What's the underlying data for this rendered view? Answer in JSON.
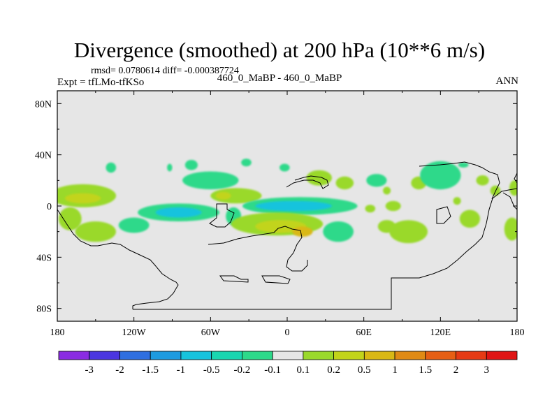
{
  "title": "Divergence (smoothed) at 200 hPa (10**6 m/s)",
  "stats_text": "rmsd= 0.0780614  diff= -0.000387724",
  "expt_text": "Expt = tfLMo-tfKSo",
  "runs_text": "460_0_MaBP - 460_0_MaBP",
  "season": "ANN",
  "chart_data": {
    "type": "heatmap",
    "title": "Divergence (smoothed) at 200 hPa (10**6 m/s)",
    "x_range": [
      -180,
      180
    ],
    "y_range": [
      -90,
      90
    ],
    "x_ticks": [
      {
        "v": -180,
        "label": "180"
      },
      {
        "v": -120,
        "label": "120W"
      },
      {
        "v": -60,
        "label": "60W"
      },
      {
        "v": 0,
        "label": "0"
      },
      {
        "v": 60,
        "label": "60E"
      },
      {
        "v": 120,
        "label": "120E"
      },
      {
        "v": 180,
        "label": "180"
      }
    ],
    "y_ticks": [
      {
        "v": 80,
        "label": "80N"
      },
      {
        "v": 40,
        "label": "40N"
      },
      {
        "v": 0,
        "label": "0"
      },
      {
        "v": -40,
        "label": "40S"
      },
      {
        "v": -80,
        "label": "80S"
      }
    ],
    "levels": [
      "-3",
      "-2",
      "-1.5",
      "-1",
      "-0.5",
      "-0.2",
      "-0.1",
      "0.1",
      "0.2",
      "0.5",
      "1",
      "1.5",
      "2",
      "3"
    ],
    "colorbar_colors": [
      "#8a2be2",
      "#4b36e0",
      "#2f6fe0",
      "#1e9be0",
      "#17c3dd",
      "#19d6b0",
      "#2dd98a",
      "#e6e6e6",
      "#9ad92b",
      "#c2d41a",
      "#d9b814",
      "#e08a14",
      "#e65f14",
      "#e63a14",
      "#e01414"
    ],
    "background_color": "#e6e6e6",
    "blobs": [
      {
        "lon": -138,
        "lat": 30,
        "rlon": 4,
        "rlat": 4,
        "color": "#2dd98a"
      },
      {
        "lon": -75,
        "lat": 32,
        "rlon": 5,
        "rlat": 4,
        "color": "#2dd98a"
      },
      {
        "lon": -32,
        "lat": 34,
        "rlon": 4,
        "rlat": 3,
        "color": "#2dd98a"
      },
      {
        "lon": -60,
        "lat": 20,
        "rlon": 22,
        "rlat": 7,
        "color": "#2dd98a"
      },
      {
        "lon": -92,
        "lat": 30,
        "rlon": 2,
        "rlat": 3,
        "color": "#2dd98a"
      },
      {
        "lon": -2,
        "lat": 30,
        "rlon": 4,
        "rlat": 3,
        "color": "#2dd98a"
      },
      {
        "lon": -160,
        "lat": 8,
        "rlon": 26,
        "rlat": 9,
        "color": "#9ad92b"
      },
      {
        "lon": -160,
        "lat": 6,
        "rlon": 14,
        "rlat": 4,
        "color": "#c2d41a"
      },
      {
        "lon": -170,
        "lat": -10,
        "rlon": 9,
        "rlat": 9,
        "color": "#9ad92b"
      },
      {
        "lon": -150,
        "lat": -20,
        "rlon": 16,
        "rlat": 8,
        "color": "#9ad92b"
      },
      {
        "lon": -85,
        "lat": -5,
        "rlon": 32,
        "rlat": 7,
        "color": "#2dd98a"
      },
      {
        "lon": -85,
        "lat": -5,
        "rlon": 18,
        "rlat": 4,
        "color": "#17c3dd"
      },
      {
        "lon": -40,
        "lat": 8,
        "rlon": 20,
        "rlat": 6,
        "color": "#9ad92b"
      },
      {
        "lon": -50,
        "lat": 8,
        "rlon": 6,
        "rlat": 3,
        "color": "#c2d41a"
      },
      {
        "lon": -120,
        "lat": -15,
        "rlon": 12,
        "rlat": 6,
        "color": "#2dd98a"
      },
      {
        "lon": -42,
        "lat": -8,
        "rlon": 6,
        "rlat": 7,
        "color": "#2dd98a"
      },
      {
        "lon": 10,
        "lat": 0,
        "rlon": 45,
        "rlat": 7,
        "color": "#2dd98a"
      },
      {
        "lon": 5,
        "lat": 0,
        "rlon": 30,
        "rlat": 4,
        "color": "#17c3dd"
      },
      {
        "lon": 70,
        "lat": 20,
        "rlon": 8,
        "rlat": 5,
        "color": "#2dd98a"
      },
      {
        "lon": 25,
        "lat": 22,
        "rlon": 10,
        "rlat": 6,
        "color": "#9ad92b"
      },
      {
        "lon": 45,
        "lat": 18,
        "rlon": 7,
        "rlat": 5,
        "color": "#9ad92b"
      },
      {
        "lon": -8,
        "lat": -14,
        "rlon": 36,
        "rlat": 9,
        "color": "#9ad92b"
      },
      {
        "lon": -5,
        "lat": -16,
        "rlon": 20,
        "rlat": 5,
        "color": "#c2d41a"
      },
      {
        "lon": 12,
        "lat": -20,
        "rlon": 8,
        "rlat": 4,
        "color": "#d9b814"
      },
      {
        "lon": 40,
        "lat": -20,
        "rlon": 12,
        "rlat": 8,
        "color": "#2dd98a"
      },
      {
        "lon": 65,
        "lat": -2,
        "rlon": 4,
        "rlat": 3,
        "color": "#9ad92b"
      },
      {
        "lon": 83,
        "lat": 0,
        "rlon": 6,
        "rlat": 4,
        "color": "#9ad92b"
      },
      {
        "lon": 78,
        "lat": -16,
        "rlon": 7,
        "rlat": 5,
        "color": "#9ad92b"
      },
      {
        "lon": 95,
        "lat": -20,
        "rlon": 15,
        "rlat": 9,
        "color": "#9ad92b"
      },
      {
        "lon": 78,
        "lat": 12,
        "rlon": 3,
        "rlat": 3,
        "color": "#9ad92b"
      },
      {
        "lon": 103,
        "lat": 18,
        "rlon": 6,
        "rlat": 5,
        "color": "#9ad92b"
      },
      {
        "lon": 120,
        "lat": 24,
        "rlon": 16,
        "rlat": 11,
        "color": "#2dd98a"
      },
      {
        "lon": 138,
        "lat": 32,
        "rlon": 4,
        "rlat": 2,
        "color": "#2dd98a"
      },
      {
        "lon": 153,
        "lat": 20,
        "rlon": 5,
        "rlat": 4,
        "color": "#9ad92b"
      },
      {
        "lon": 163,
        "lat": 12,
        "rlon": 4,
        "rlat": 4,
        "color": "#9ad92b"
      },
      {
        "lon": 133,
        "lat": 4,
        "rlon": 3,
        "rlat": 3,
        "color": "#9ad92b"
      },
      {
        "lon": 143,
        "lat": -10,
        "rlon": 8,
        "rlat": 7,
        "color": "#9ad92b"
      },
      {
        "lon": 178,
        "lat": 14,
        "rlon": 4,
        "rlat": 6,
        "color": "#9ad92b"
      },
      {
        "lon": 176,
        "lat": -18,
        "rlon": 6,
        "rlat": 9,
        "color": "#9ad92b"
      }
    ]
  }
}
